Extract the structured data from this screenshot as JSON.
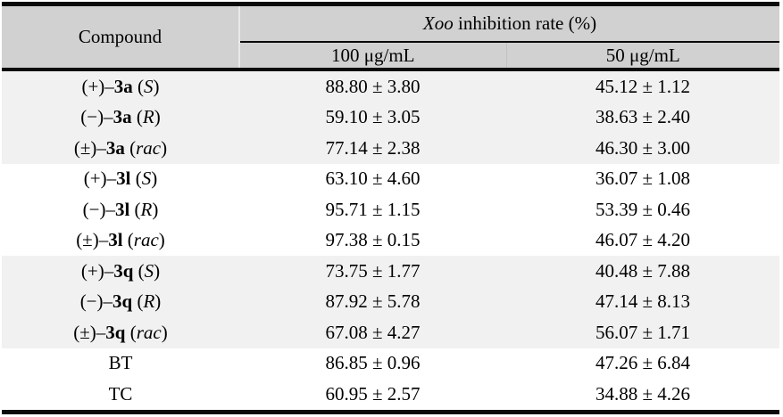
{
  "table": {
    "colors": {
      "header_bg": "#d2d1d1",
      "row_shade": "#f1f1f1",
      "rule": "#0a0a0a",
      "divider_light": "#e9e7e7",
      "divider_faint": "#c3c1c1"
    },
    "header": {
      "compound_label": "Compound",
      "group_title_parts": [
        {
          "t": "Xoo",
          "s": "i"
        },
        {
          "t": " inhibition rate (%)",
          "s": "n"
        }
      ],
      "sub_columns": [
        "100 μg/mL",
        "50 μg/mL"
      ]
    },
    "rows": [
      {
        "compound_parts": [
          {
            "t": "(+)–",
            "s": "n"
          },
          {
            "t": "3a",
            "s": "b"
          },
          {
            "t": " (",
            "s": "n"
          },
          {
            "t": "S",
            "s": "i"
          },
          {
            "t": ")",
            "s": "n"
          }
        ],
        "c100": "88.80 ± 3.80",
        "c50": "45.12 ± 1.12",
        "shade": true
      },
      {
        "compound_parts": [
          {
            "t": "(−)–",
            "s": "n"
          },
          {
            "t": "3a",
            "s": "b"
          },
          {
            "t": " (",
            "s": "n"
          },
          {
            "t": "R",
            "s": "i"
          },
          {
            "t": ")",
            "s": "n"
          }
        ],
        "c100": "59.10 ± 3.05",
        "c50": "38.63 ± 2.40",
        "shade": true
      },
      {
        "compound_parts": [
          {
            "t": "(±)–",
            "s": "n"
          },
          {
            "t": "3a",
            "s": "b"
          },
          {
            "t": " (",
            "s": "n"
          },
          {
            "t": "rac",
            "s": "i"
          },
          {
            "t": ")",
            "s": "n"
          }
        ],
        "c100": "77.14 ± 2.38",
        "c50": "46.30 ± 3.00",
        "shade": true
      },
      {
        "compound_parts": [
          {
            "t": "(+)–",
            "s": "n"
          },
          {
            "t": "3l",
            "s": "b"
          },
          {
            "t": " (",
            "s": "n"
          },
          {
            "t": "S",
            "s": "i"
          },
          {
            "t": ")",
            "s": "n"
          }
        ],
        "c100": "63.10 ± 4.60",
        "c50": "36.07 ± 1.08",
        "shade": false
      },
      {
        "compound_parts": [
          {
            "t": "(−)–",
            "s": "n"
          },
          {
            "t": "3l",
            "s": "b"
          },
          {
            "t": " (",
            "s": "n"
          },
          {
            "t": "R",
            "s": "i"
          },
          {
            "t": ")",
            "s": "n"
          }
        ],
        "c100": "95.71 ± 1.15",
        "c50": "53.39 ± 0.46",
        "shade": false
      },
      {
        "compound_parts": [
          {
            "t": "(±)–",
            "s": "n"
          },
          {
            "t": "3l",
            "s": "b"
          },
          {
            "t": " (",
            "s": "n"
          },
          {
            "t": "rac",
            "s": "i"
          },
          {
            "t": ")",
            "s": "n"
          }
        ],
        "c100": "97.38 ± 0.15",
        "c50": "46.07 ± 4.20",
        "shade": false
      },
      {
        "compound_parts": [
          {
            "t": "(+)–",
            "s": "n"
          },
          {
            "t": "3q",
            "s": "b"
          },
          {
            "t": " (",
            "s": "n"
          },
          {
            "t": "S",
            "s": "i"
          },
          {
            "t": ")",
            "s": "n"
          }
        ],
        "c100": "73.75 ± 1.77",
        "c50": "40.48 ± 7.88",
        "shade": true
      },
      {
        "compound_parts": [
          {
            "t": "(−)–",
            "s": "n"
          },
          {
            "t": "3q",
            "s": "b"
          },
          {
            "t": " (",
            "s": "n"
          },
          {
            "t": "R",
            "s": "i"
          },
          {
            "t": ")",
            "s": "n"
          }
        ],
        "c100": "87.92 ± 5.78",
        "c50": "47.14 ± 8.13",
        "shade": true
      },
      {
        "compound_parts": [
          {
            "t": "(±)–",
            "s": "n"
          },
          {
            "t": "3q",
            "s": "b"
          },
          {
            "t": " (",
            "s": "n"
          },
          {
            "t": "rac",
            "s": "i"
          },
          {
            "t": ")",
            "s": "n"
          }
        ],
        "c100": "67.08 ± 4.27",
        "c50": "56.07 ± 1.71",
        "shade": true
      },
      {
        "compound_parts": [
          {
            "t": "BT",
            "s": "n"
          }
        ],
        "c100": "86.85 ± 0.96",
        "c50": "47.26 ± 6.84",
        "shade": false
      },
      {
        "compound_parts": [
          {
            "t": "TC",
            "s": "n"
          }
        ],
        "c100": "60.95 ± 2.57",
        "c50": "34.88 ± 4.26",
        "shade": false
      }
    ]
  }
}
